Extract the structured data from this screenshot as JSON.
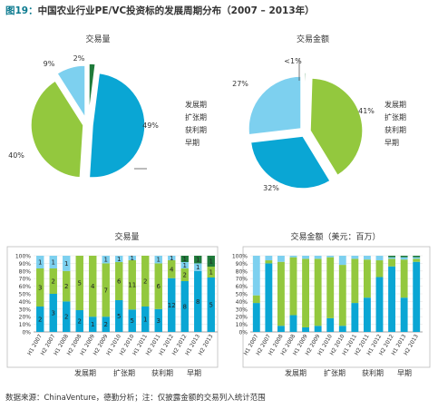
{
  "title": {
    "figure": "图19：",
    "text": "中国农业行业PE/VC投资标的发展周期分布（2007 – 2013年）"
  },
  "source": "数据来源：ChinaVenture，德勤分析；注：仅披露金额的交易列入统计范围",
  "colors": {
    "venture": "#0aa6d4",
    "expansion": "#93c83e",
    "profit": "#7dd0ef",
    "early": "#1f7a3a"
  },
  "legend": [
    "发展期",
    "扩张期",
    "获利期",
    "早期"
  ],
  "chart_data": [
    {
      "type": "pie",
      "title": "交易量",
      "slices": [
        {
          "name": "发展期",
          "value": 49,
          "label": "49%"
        },
        {
          "name": "扩张期",
          "value": 40,
          "label": "40%"
        },
        {
          "name": "获利期",
          "value": 9,
          "label": "9%"
        },
        {
          "name": "早期",
          "value": 2,
          "label": "2%"
        }
      ]
    },
    {
      "type": "pie",
      "title": "交易金额",
      "slices": [
        {
          "name": "发展期",
          "value": 32,
          "label": "32%"
        },
        {
          "name": "扩张期",
          "value": 41,
          "label": "41%"
        },
        {
          "name": "获利期",
          "value": 27,
          "label": "27%"
        },
        {
          "name": "早期",
          "value": 0.5,
          "label": "<1%"
        }
      ]
    },
    {
      "type": "bar",
      "stacked": "percent",
      "title": "交易量",
      "ylim": [
        0,
        100
      ],
      "yticks": [
        "0%",
        "10%",
        "20%",
        "30%",
        "40%",
        "50%",
        "60%",
        "70%",
        "80%",
        "90%",
        "100%"
      ],
      "categories": [
        "H1 2007",
        "H2 2007",
        "H1 2008",
        "H2 2008",
        "H1 2009",
        "H2 2009",
        "H1 2010",
        "H2 2010",
        "H1 2011",
        "H2 2011",
        "H1 2012",
        "H2 2012",
        "H1 2013",
        "H2 2013"
      ],
      "series": [
        {
          "name": "发展期",
          "values": [
            2,
            3,
            2,
            2,
            1,
            2,
            5,
            5,
            1,
            3,
            12,
            8,
            8,
            5
          ]
        },
        {
          "name": "扩张期",
          "values": [
            3,
            2,
            2,
            5,
            4,
            7,
            6,
            11,
            2,
            6,
            4,
            2,
            0,
            1
          ]
        },
        {
          "name": "获利期",
          "values": [
            1,
            1,
            1,
            0,
            0,
            1,
            1,
            1,
            0,
            1,
            1,
            1,
            1,
            0
          ]
        },
        {
          "name": "早期",
          "values": [
            0,
            0,
            0,
            0,
            0,
            0,
            0,
            0,
            0,
            0,
            0,
            1,
            1,
            1
          ]
        }
      ],
      "labels": [
        [
          "2",
          "3",
          "1",
          ""
        ],
        [
          "3",
          "2",
          "1",
          ""
        ],
        [
          "2",
          "2",
          "1",
          ""
        ],
        [
          "2",
          "5",
          "",
          ""
        ],
        [
          "1",
          "4",
          "",
          ""
        ],
        [
          "2",
          "7",
          "1",
          ""
        ],
        [
          "5",
          "6",
          "1",
          ""
        ],
        [
          "5",
          "11",
          "1",
          ""
        ],
        [
          "1",
          "2",
          "",
          ""
        ],
        [
          "3",
          "6",
          "1",
          ""
        ],
        [
          "12",
          "4",
          "1",
          ""
        ],
        [
          "8",
          "2",
          "1",
          "1"
        ],
        [
          "8",
          "",
          "1",
          "1"
        ],
        [
          "5",
          "1",
          "",
          "1"
        ]
      ]
    },
    {
      "type": "bar",
      "stacked": "percent",
      "title": "交易金额（美元：百万）",
      "ylim": [
        0,
        100
      ],
      "yticks": [
        "0%",
        "10%",
        "20%",
        "30%",
        "40%",
        "50%",
        "60%",
        "70%",
        "80%",
        "90%",
        "100%"
      ],
      "categories": [
        "H1 2007",
        "H2 2007",
        "H1 2008",
        "H2 2008",
        "H1 2009",
        "H2 2009",
        "H1 2010",
        "H2 2010",
        "H1 2011",
        "H2 2011",
        "H1 2012",
        "H2 2012",
        "H1 2013",
        "H2 2013"
      ],
      "series": [
        {
          "name": "发展期",
          "values": [
            38,
            90,
            8,
            22,
            6,
            8,
            18,
            8,
            38,
            45,
            72,
            86,
            45,
            92
          ]
        },
        {
          "name": "扩张期",
          "values": [
            10,
            4,
            84,
            76,
            90,
            88,
            80,
            80,
            58,
            50,
            22,
            10,
            50,
            4
          ]
        },
        {
          "name": "获利期",
          "values": [
            52,
            6,
            8,
            2,
            4,
            4,
            2,
            12,
            4,
            5,
            6,
            2,
            3,
            2
          ]
        },
        {
          "name": "早期",
          "values": [
            0,
            0,
            0,
            0,
            0,
            0,
            0,
            0,
            0,
            0,
            0,
            2,
            2,
            2
          ]
        }
      ]
    }
  ]
}
